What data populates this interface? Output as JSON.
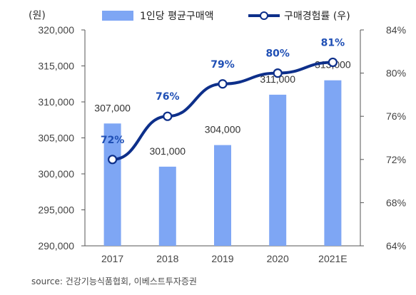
{
  "chart_data": {
    "type": "bar+line",
    "unit_label": "(원)",
    "categories": [
      "2017",
      "2018",
      "2019",
      "2020",
      "2021E"
    ],
    "series": [
      {
        "name": "1인당 평균구매액",
        "type": "bar",
        "axis": "left",
        "values": [
          307000,
          301000,
          304000,
          311000,
          313000
        ],
        "labels": [
          "307,000",
          "301,000",
          "304,000",
          "311,000",
          "313,000"
        ]
      },
      {
        "name": "구매경험률 (우)",
        "type": "line",
        "axis": "right",
        "values": [
          72,
          76,
          79,
          80,
          81
        ],
        "labels": [
          "72%",
          "76%",
          "79%",
          "80%",
          "81%"
        ]
      }
    ],
    "left_axis": {
      "min": 290000,
      "max": 320000,
      "ticks": [
        290000,
        295000,
        300000,
        305000,
        310000,
        315000,
        320000
      ],
      "tick_labels": [
        "290,000",
        "295,000",
        "300,000",
        "305,000",
        "310,000",
        "315,000",
        "320,000"
      ]
    },
    "right_axis": {
      "min": 64,
      "max": 84,
      "ticks": [
        64,
        68,
        72,
        76,
        80,
        84
      ],
      "tick_labels": [
        "64%",
        "68%",
        "72%",
        "76%",
        "80%",
        "84%"
      ]
    },
    "legend_position": "top",
    "grid": false,
    "colors": {
      "bar": "#7ea6f4",
      "line": "#0d2f8a",
      "line_label": "#1f4fb5",
      "marker_fill": "#ffffff"
    }
  },
  "source": "source: 건강기능식품협회, 이베스트투자증권"
}
